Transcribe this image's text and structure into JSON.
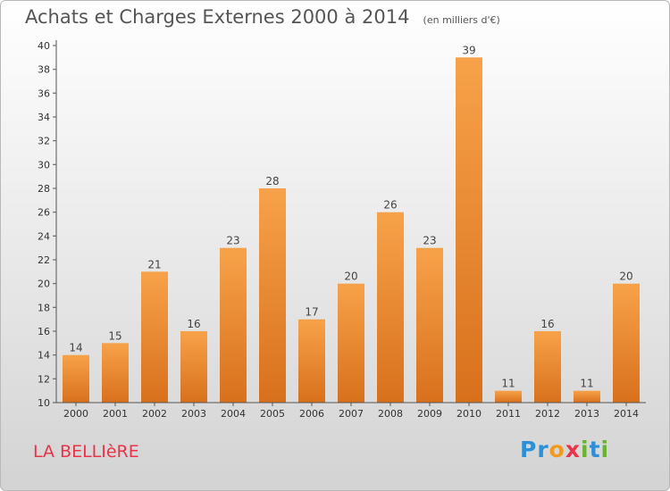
{
  "header": {
    "title": "Achats et Charges Externes 2000 à 2014",
    "subtitle": "(en milliers d'€)"
  },
  "footer": {
    "city": "LA BELLIèRE",
    "logo_letters": [
      {
        "ch": "P",
        "color": "#2d8fd6"
      },
      {
        "ch": "r",
        "color": "#2d8fd6"
      },
      {
        "ch": "o",
        "color": "#f29a1d"
      },
      {
        "ch": "x",
        "color": "#e8334a"
      },
      {
        "ch": "i",
        "color": "#6ab42d"
      },
      {
        "ch": "t",
        "color": "#2d8fd6"
      },
      {
        "ch": "i",
        "color": "#6ab42d"
      }
    ]
  },
  "chart_data": {
    "type": "bar",
    "title": "Achats et Charges Externes 2000 à 2014",
    "subtitle": "(en milliers d'€)",
    "xlabel": "",
    "ylabel": "",
    "categories": [
      "2000",
      "2001",
      "2002",
      "2003",
      "2004",
      "2005",
      "2006",
      "2007",
      "2008",
      "2009",
      "2010",
      "2011",
      "2012",
      "2013",
      "2014"
    ],
    "values": [
      14,
      15,
      21,
      16,
      23,
      28,
      17,
      20,
      26,
      23,
      39,
      11,
      16,
      11,
      20
    ],
    "ylim": [
      10,
      40
    ],
    "yticks": [
      10,
      12,
      14,
      16,
      18,
      20,
      22,
      24,
      26,
      28,
      30,
      32,
      34,
      36,
      38,
      40
    ],
    "grid": false,
    "bar_color_light": "#f7a24a",
    "bar_color_dark": "#d8701c",
    "axis_color": "#555555"
  }
}
